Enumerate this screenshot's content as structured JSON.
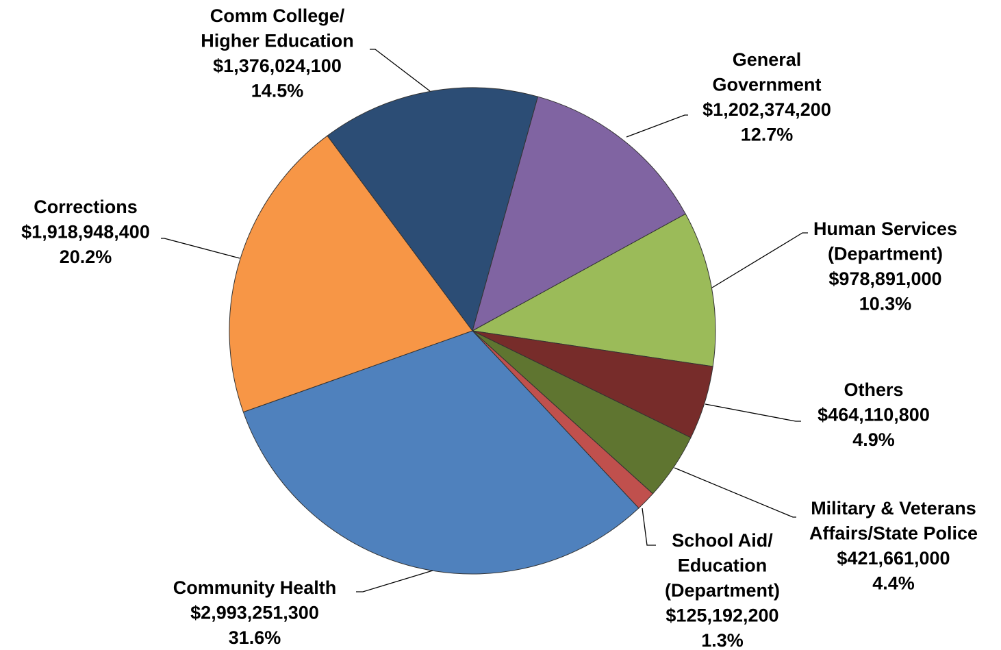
{
  "chart_data": {
    "type": "pie",
    "categories": [
      "General\nGovernment",
      "Human Services\n(Department)",
      "Others",
      "Military & Veterans\nAffairs/State Police",
      "School Aid/\nEducation\n(Department)",
      "Community Health",
      "Corrections",
      "Comm College/\nHigher Education"
    ],
    "values": [
      1202374200,
      978891000,
      464110800,
      421661000,
      125192200,
      2993251300,
      1918948400,
      1376024100
    ],
    "value_labels": [
      "$1,202,374,200",
      "$978,891,000",
      "$464,110,800",
      "$421,661,000",
      "$125,192,200",
      "$2,993,251,300",
      "$1,918,948,400",
      "$1,376,024,100"
    ],
    "percent_labels": [
      "12.7%",
      "10.3%",
      "4.9%",
      "4.4%",
      "1.3%",
      "31.6%",
      "20.2%",
      "14.5%"
    ],
    "colors": [
      "#8064a2",
      "#9bbb59",
      "#772c2a",
      "#5f7530",
      "#c0504d",
      "#4f81bd",
      "#f79646",
      "#2c4d75"
    ]
  }
}
